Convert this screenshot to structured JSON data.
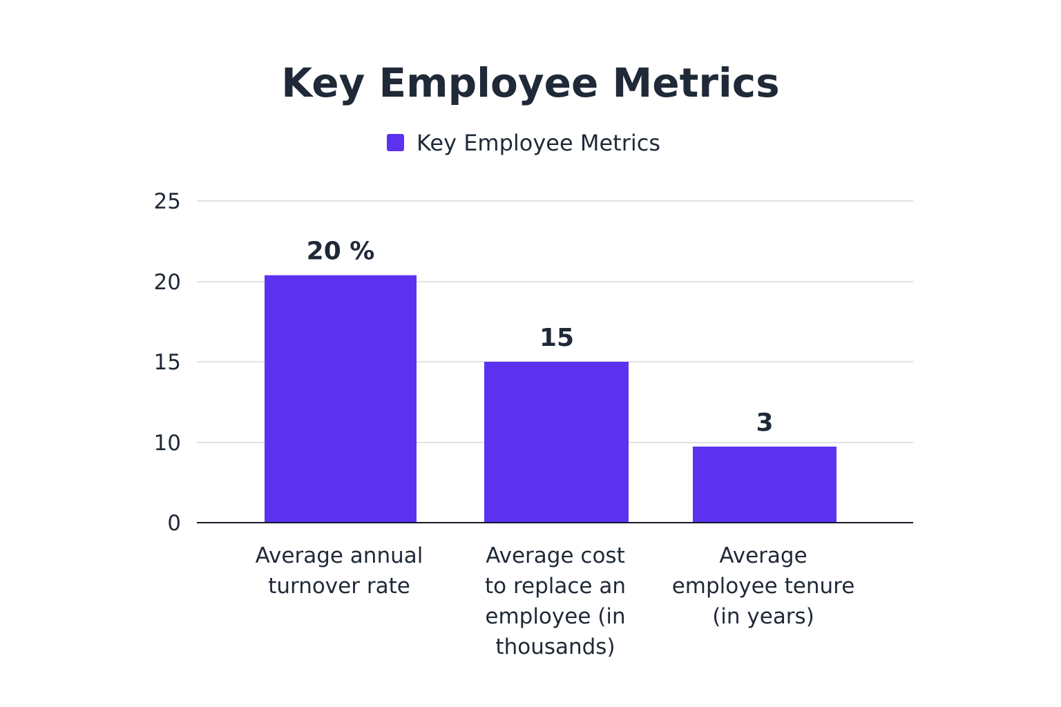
{
  "chart_data": {
    "type": "bar",
    "title": "Key Employee Metrics",
    "legend": {
      "entries": [
        "Key Employee Metrics"
      ],
      "position": "top"
    },
    "categories": [
      "Average annual turnover rate",
      "Average cost to replace an employee (in thousands)",
      "Average employee tenure (in years)"
    ],
    "category_lines": [
      [
        "Average annual",
        "turnover rate"
      ],
      [
        "Average cost",
        "to replace an",
        "employee (in",
        "thousands)"
      ],
      [
        "Average",
        "employee tenure",
        "(in years)"
      ]
    ],
    "series": [
      {
        "name": "Key Employee Metrics",
        "values": [
          20,
          15,
          3
        ],
        "display_heights": [
          20.4,
          15,
          9.5
        ],
        "data_labels": [
          "20 %",
          "15",
          "3"
        ]
      }
    ],
    "y_ticks": [
      0,
      10,
      15,
      20,
      25
    ],
    "ylim": [
      0,
      25
    ],
    "xlabel": "",
    "ylabel": "",
    "grid": true
  },
  "colors": {
    "bar": "#5b32f0",
    "text": "#1f2937",
    "grid": "#d9d9d9",
    "axis": "#111827",
    "background": "#ffffff"
  }
}
